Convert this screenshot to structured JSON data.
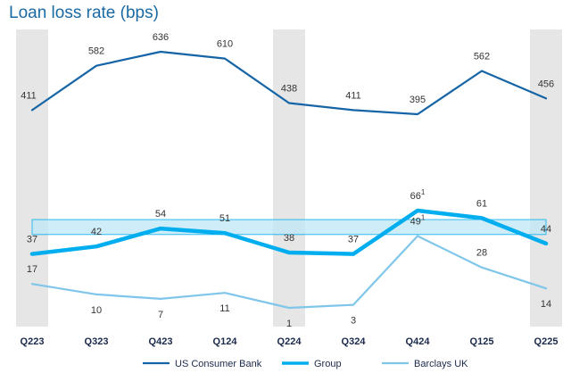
{
  "chart_data": {
    "type": "line",
    "title": "Loan loss rate (bps)",
    "categories": [
      "Q223",
      "Q323",
      "Q423",
      "Q124",
      "Q224",
      "Q324",
      "Q424",
      "Q125",
      "Q225"
    ],
    "highlighted_categories": [
      "Q223",
      "Q224",
      "Q225"
    ],
    "series": [
      {
        "name": "US Consumer Bank",
        "color": "#1565a6",
        "values": [
          411,
          582,
          636,
          610,
          438,
          411,
          395,
          562,
          456
        ],
        "labels": [
          "411",
          "582",
          "636",
          "610",
          "438",
          "411",
          "395",
          "562",
          "456"
        ],
        "superscripts": [
          "",
          "",
          "",
          "",
          "",
          "",
          "",
          "",
          ""
        ]
      },
      {
        "name": "Group",
        "color": "#00aeef",
        "values": [
          37,
          42,
          54,
          51,
          38,
          37,
          66,
          61,
          44
        ],
        "labels": [
          "37",
          "42",
          "54",
          "51",
          "38",
          "37",
          "66",
          "61",
          "44"
        ],
        "superscripts": [
          "",
          "",
          "",
          "",
          "",
          "",
          "1",
          "",
          ""
        ]
      },
      {
        "name": "Barclays UK",
        "color": "#7fc6ea",
        "values": [
          17,
          10,
          7,
          11,
          1,
          3,
          49,
          28,
          14
        ],
        "labels": [
          "17",
          "10",
          "7",
          "11",
          "1",
          "3",
          "49",
          "28",
          "14"
        ],
        "superscripts": [
          "",
          "",
          "",
          "",
          "",
          "",
          "1",
          "",
          ""
        ]
      }
    ],
    "target_band": {
      "low": 50,
      "high": 60,
      "color": "#bfe6f7"
    },
    "legend_position": "bottom",
    "grid": false
  }
}
